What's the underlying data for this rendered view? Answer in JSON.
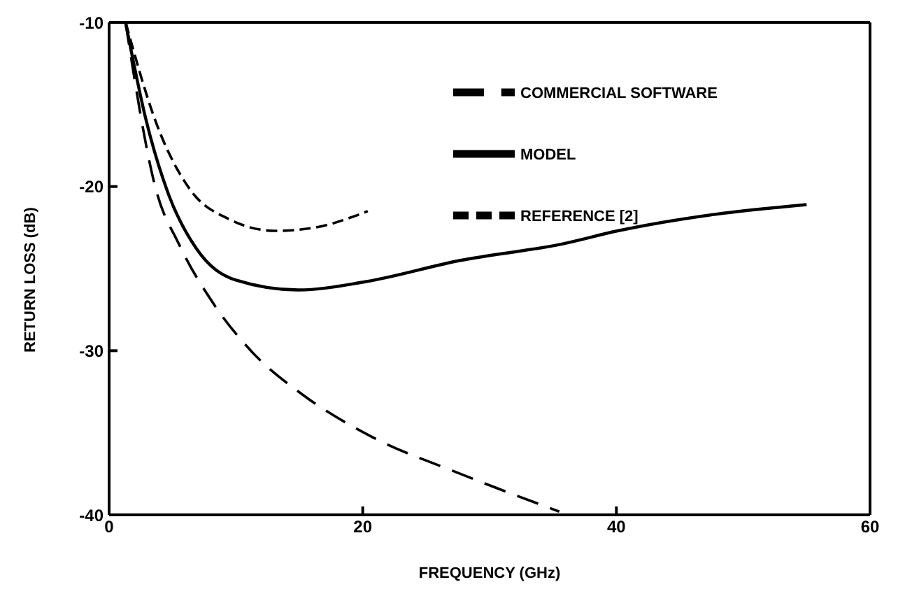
{
  "chart_data": {
    "type": "line",
    "xlabel": "FREQUENCY (GHz)",
    "ylabel": "RETURN LOSS (dB)",
    "xlim": [
      0,
      60
    ],
    "xticks": [
      0,
      20,
      40,
      60
    ],
    "ylim": [
      -40,
      -10
    ],
    "yticks": [
      -10,
      -20,
      -30,
      -40
    ],
    "grid": false,
    "legend": "top right",
    "marker": "none",
    "series": [
      {
        "name": "MODEL",
        "color": "#000000",
        "line_style": "solid",
        "x": [
          1.3,
          2.9,
          4.7,
          6.9,
          10,
          14.9,
          20.2,
          27.7,
          35.7,
          40.1,
          47.7,
          55
        ],
        "values": [
          -10,
          -15.9,
          -20.5,
          -23.8,
          -25.7,
          -26.3,
          -25.8,
          -24.5,
          -23.5,
          -22.7,
          -21.7,
          -21.1
        ]
      },
      {
        "name": "COMMERCIAL SOFTWARE",
        "color": "#000000",
        "line_style": "dashed",
        "x": [
          1.3,
          3.7,
          5.5,
          8.2,
          11.3,
          15.3,
          20.6,
          27.7,
          35.5
        ],
        "values": [
          -10,
          -20.2,
          -23.5,
          -27.1,
          -30.1,
          -32.7,
          -35.2,
          -37.5,
          -39.8
        ]
      },
      {
        "name": "REFERENCE [2]",
        "color": "#000000",
        "line_style": "dashed",
        "x": [
          1.3,
          3.8,
          6.4,
          9.5,
          13.1,
          16.2,
          20.4
        ],
        "values": [
          -10,
          -16.3,
          -20.2,
          -22,
          -22.7,
          -22.5,
          -21.5
        ]
      }
    ]
  }
}
